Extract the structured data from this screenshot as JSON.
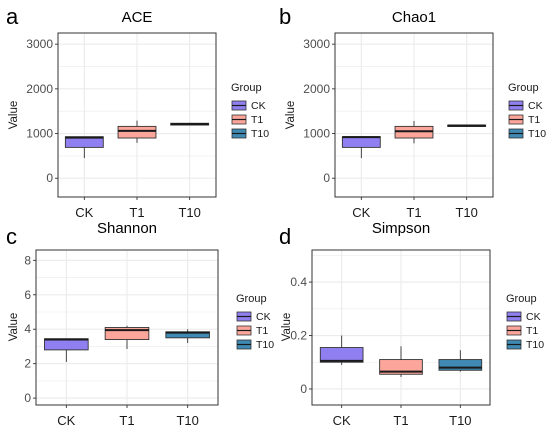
{
  "legend": {
    "title": "Group",
    "items": [
      "CK",
      "T1",
      "T10"
    ]
  },
  "colors": {
    "CK": "#8f7ff0",
    "T1": "#fba59b",
    "T10": "#3f89b3",
    "grid": "#ebebeb",
    "border": "#333333"
  },
  "chart_data": [
    {
      "type": "box",
      "letter": "a",
      "title": "ACE",
      "ylabel": "Value",
      "xlabel": "",
      "categories": [
        "CK",
        "T1",
        "T10"
      ],
      "ylim": [
        -420,
        3250
      ],
      "yticks": [
        0,
        1000,
        2000,
        3000
      ],
      "grid": true,
      "legend_position": "right",
      "boxes": [
        {
          "group": "CK",
          "min": 450,
          "q1": 690,
          "median": 910,
          "q3": 930,
          "max": 930
        },
        {
          "group": "T1",
          "min": 790,
          "q1": 900,
          "median": 1060,
          "q3": 1160,
          "max": 1290
        },
        {
          "group": "T10",
          "min": 1180,
          "q1": 1190,
          "median": 1210,
          "q3": 1230,
          "max": 1240
        }
      ]
    },
    {
      "type": "box",
      "letter": "b",
      "title": "Chao1",
      "ylabel": "Value",
      "xlabel": "",
      "categories": [
        "CK",
        "T1",
        "T10"
      ],
      "ylim": [
        -420,
        3250
      ],
      "yticks": [
        0,
        1000,
        2000,
        3000
      ],
      "grid": true,
      "legend_position": "right",
      "boxes": [
        {
          "group": "CK",
          "min": 450,
          "q1": 690,
          "median": 920,
          "q3": 930,
          "max": 930
        },
        {
          "group": "T1",
          "min": 780,
          "q1": 900,
          "median": 1050,
          "q3": 1160,
          "max": 1280
        },
        {
          "group": "T10",
          "min": 1160,
          "q1": 1170,
          "median": 1180,
          "q3": 1190,
          "max": 1200
        }
      ]
    },
    {
      "type": "box",
      "letter": "c",
      "title": "Shannon",
      "ylabel": "Value",
      "xlabel": "",
      "categories": [
        "CK",
        "T1",
        "T10"
      ],
      "ylim": [
        -0.4,
        8.6
      ],
      "yticks": [
        0,
        2,
        4,
        6,
        8
      ],
      "grid": true,
      "legend_position": "right",
      "boxes": [
        {
          "group": "CK",
          "min": 2.1,
          "q1": 2.8,
          "median": 3.4,
          "q3": 3.45,
          "max": 3.45
        },
        {
          "group": "T1",
          "min": 2.85,
          "q1": 3.4,
          "median": 3.95,
          "q3": 4.1,
          "max": 4.2
        },
        {
          "group": "T10",
          "min": 3.2,
          "q1": 3.5,
          "median": 3.8,
          "q3": 3.85,
          "max": 4.0
        }
      ]
    },
    {
      "type": "box",
      "letter": "d",
      "title": "Simpson",
      "ylabel": "Value",
      "xlabel": "",
      "categories": [
        "CK",
        "T1",
        "T10"
      ],
      "ylim": [
        -0.06,
        0.52
      ],
      "yticks": [
        0.0,
        0.2,
        0.4
      ],
      "grid": true,
      "legend_position": "right",
      "boxes": [
        {
          "group": "CK",
          "min": 0.09,
          "q1": 0.1,
          "median": 0.105,
          "q3": 0.155,
          "max": 0.2
        },
        {
          "group": "T1",
          "min": 0.045,
          "q1": 0.055,
          "median": 0.065,
          "q3": 0.11,
          "max": 0.16
        },
        {
          "group": "T10",
          "min": 0.065,
          "q1": 0.07,
          "median": 0.08,
          "q3": 0.11,
          "max": 0.145
        }
      ]
    }
  ]
}
